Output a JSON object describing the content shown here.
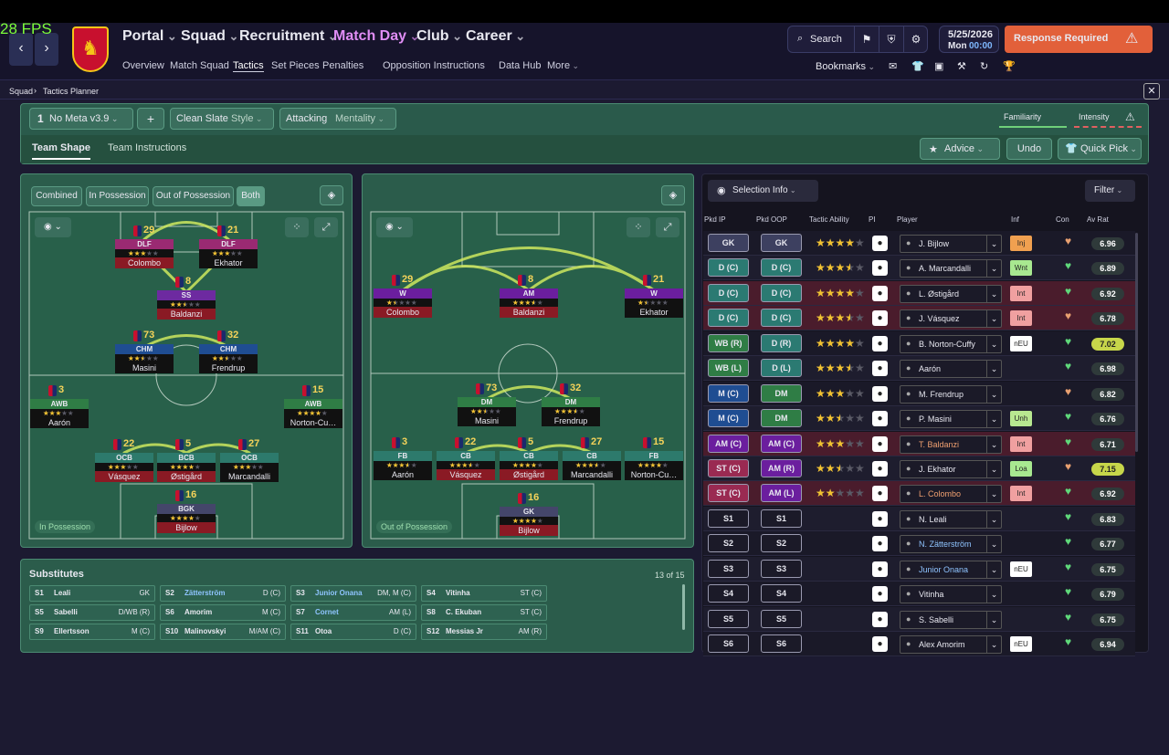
{
  "fps": "28 FPS",
  "nav": {
    "main": [
      "Portal",
      "Squad",
      "Recruitment",
      "Match Day",
      "Club",
      "Career"
    ],
    "sub": [
      "Overview",
      "Match Squad",
      "Tactics",
      "Set Pieces",
      "Penalties",
      "Opposition Instructions",
      "Data Hub",
      "More"
    ]
  },
  "search": "Search",
  "date": "5/25/2026",
  "day": "Mon",
  "time": "00:00",
  "alert": "Response Required",
  "bookmarks": "Bookmarks",
  "breadcrumb": [
    "Squad",
    "Tactics Planner"
  ],
  "toolbar": {
    "slot": "1",
    "tactic": "No Meta v3.9",
    "style_value": "Clean Slate",
    "style_label": "Style",
    "mentality_value": "Attacking",
    "mentality_label": "Mentality",
    "familiarity": "Familiarity",
    "intensity": "Intensity",
    "tabs": [
      "Team Shape",
      "Team Instructions"
    ],
    "advice": "Advice",
    "undo": "Undo",
    "quick_pick": "Quick Pick"
  },
  "phase_tabs": [
    "Combined",
    "In Possession",
    "Out of Possession",
    "Both"
  ],
  "pitches": [
    {
      "label": "In Possession",
      "players": [
        {
          "number": 29,
          "role": "DLF",
          "stars": 3,
          "name": "Colombo"
        },
        {
          "number": 21,
          "role": "DLF",
          "stars": 3,
          "name": "Ekhator"
        },
        {
          "number": 8,
          "role": "SS",
          "stars": 2.5,
          "name": "Baldanzi"
        },
        {
          "number": 73,
          "role": "CHM",
          "stars": 2.5,
          "name": "Masini"
        },
        {
          "number": 32,
          "role": "CHM",
          "stars": 2.5,
          "name": "Frendrup"
        },
        {
          "number": 3,
          "role": "AWB",
          "stars": 3,
          "name": "Aarón"
        },
        {
          "number": 15,
          "role": "AWB",
          "stars": 4,
          "name": "Norton-Cu…"
        },
        {
          "number": 22,
          "role": "OCB",
          "stars": 3,
          "name": "Vásquez"
        },
        {
          "number": 5,
          "role": "BCB",
          "stars": 4,
          "name": "Østigård"
        },
        {
          "number": 27,
          "role": "OCB",
          "stars": 3,
          "name": "Marcandalli"
        },
        {
          "number": 16,
          "role": "BGK",
          "stars": 4,
          "name": "Bijlow"
        }
      ]
    },
    {
      "label": "Out of Possession",
      "players": [
        {
          "number": 29,
          "role": "W",
          "stars": 1.5,
          "name": "Colombo"
        },
        {
          "number": 8,
          "role": "AM",
          "stars": 3.5,
          "name": "Baldanzi"
        },
        {
          "number": 21,
          "role": "W",
          "stars": 1.5,
          "name": "Ekhator"
        },
        {
          "number": 73,
          "role": "DM",
          "stars": 2.5,
          "name": "Masini"
        },
        {
          "number": 32,
          "role": "DM",
          "stars": 3.5,
          "name": "Frendrup"
        },
        {
          "number": 3,
          "role": "FB",
          "stars": 3.5,
          "name": "Aarón"
        },
        {
          "number": 22,
          "role": "CB",
          "stars": 3.5,
          "name": "Vásquez"
        },
        {
          "number": 5,
          "role": "CB",
          "stars": 4,
          "name": "Østigård"
        },
        {
          "number": 27,
          "role": "CB",
          "stars": 3.5,
          "name": "Marcandalli"
        },
        {
          "number": 15,
          "role": "FB",
          "stars": 4,
          "name": "Norton-Cu…"
        },
        {
          "number": 16,
          "role": "GK",
          "stars": 4,
          "name": "Bijlow"
        }
      ]
    }
  ],
  "substitutes": {
    "title": "Substitutes",
    "count": "13 of 15",
    "entries": [
      {
        "slot": "S1",
        "name": "Leali",
        "position": "GK"
      },
      {
        "slot": "S2",
        "name": "Zätterström",
        "position": "D (C)"
      },
      {
        "slot": "S3",
        "name": "Junior Onana",
        "position": "DM, M (C)"
      },
      {
        "slot": "S4",
        "name": "Vitinha",
        "position": "ST (C)"
      },
      {
        "slot": "S5",
        "name": "Sabelli",
        "position": "D/WB (R)"
      },
      {
        "slot": "S6",
        "name": "Amorim",
        "position": "M (C)"
      },
      {
        "slot": "S7",
        "name": "Cornet",
        "position": "AM (L)"
      },
      {
        "slot": "S8",
        "name": "C. Ekuban",
        "position": "ST (C)"
      },
      {
        "slot": "S9",
        "name": "Ellertsson",
        "position": "M (C)"
      },
      {
        "slot": "S10",
        "name": "Malinovskyi",
        "position": "M/AM (C)"
      },
      {
        "slot": "S11",
        "name": "Otoa",
        "position": "D (C)"
      },
      {
        "slot": "S12",
        "name": "Messias Jr",
        "position": "AM (R)"
      }
    ]
  },
  "selection": {
    "title": "Selection Info",
    "filter": "Filter",
    "headers": [
      "Pkd IP",
      "Pkd OOP",
      "Tactic Ability",
      "PI",
      "Player",
      "Inf",
      "Con",
      "Av Rat"
    ],
    "rows": [
      {
        "ip": "GK",
        "oop": "GK",
        "ability": 4,
        "player": "J. Bijlow",
        "inf": "Inj",
        "rating": 6.96
      },
      {
        "ip": "D (C)",
        "oop": "D (C)",
        "ability": 3.5,
        "player": "A. Marcandalli",
        "inf": "Wnt",
        "rating": 6.89
      },
      {
        "ip": "D (C)",
        "oop": "D (C)",
        "ability": 4,
        "player": "L. Østigård",
        "inf": "Int",
        "rating": 6.92
      },
      {
        "ip": "D (C)",
        "oop": "D (C)",
        "ability": 3.5,
        "player": "J. Vásquez",
        "inf": "Int",
        "rating": 6.78
      },
      {
        "ip": "WB (R)",
        "oop": "D (R)",
        "ability": 4,
        "player": "B. Norton-Cuffy",
        "inf": "nEU",
        "rating": 7.02
      },
      {
        "ip": "WB (L)",
        "oop": "D (L)",
        "ability": 3.5,
        "player": "Aarón",
        "rating": 6.98
      },
      {
        "ip": "M (C)",
        "oop": "DM",
        "ability": 3,
        "player": "M. Frendrup",
        "rating": 6.82
      },
      {
        "ip": "M (C)",
        "oop": "DM",
        "ability": 2.5,
        "player": "P. Masini",
        "inf": "Unh",
        "rating": 6.76
      },
      {
        "ip": "AM (C)",
        "oop": "AM (C)",
        "ability": 3,
        "player": "T. Baldanzi",
        "inf": "Int",
        "rating": 6.71
      },
      {
        "ip": "ST (C)",
        "oop": "AM (R)",
        "ability": 2.5,
        "player": "J. Ekhator",
        "inf": "Loa",
        "rating": 7.15
      },
      {
        "ip": "ST (C)",
        "oop": "AM (L)",
        "ability": 2,
        "player": "L. Colombo",
        "inf": "Int",
        "rating": 6.92
      },
      {
        "ip": "S1",
        "oop": "S1",
        "player": "N. Leali",
        "rating": 6.83
      },
      {
        "ip": "S2",
        "oop": "S2",
        "player": "N. Zätterström",
        "rating": 6.77
      },
      {
        "ip": "S3",
        "oop": "S3",
        "player": "Junior Onana",
        "inf": "nEU",
        "rating": 6.75
      },
      {
        "ip": "S4",
        "oop": "S4",
        "player": "Vitinha",
        "rating": 6.79
      },
      {
        "ip": "S5",
        "oop": "S5",
        "player": "S. Sabelli",
        "rating": 6.75
      },
      {
        "ip": "S6",
        "oop": "S6",
        "player": "Alex Amorim",
        "inf": "nEU",
        "rating": 6.94
      }
    ]
  }
}
